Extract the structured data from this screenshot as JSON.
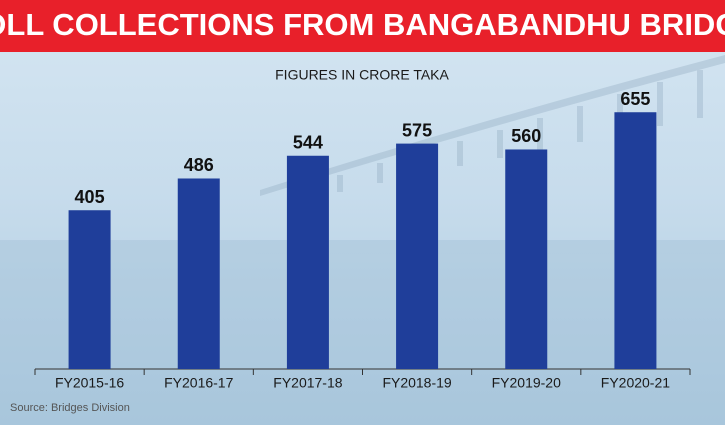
{
  "chart_data": {
    "type": "bar",
    "title": "TOLL COLLECTIONS FROM BANGABANDHU BRIDGE",
    "subtitle": "FIGURES IN CRORE TAKA",
    "source": "Source: Bridges Division",
    "categories": [
      "FY2015-16",
      "FY2016-17",
      "FY2017-18",
      "FY2018-19",
      "FY2019-20",
      "FY2020-21"
    ],
    "values": [
      405,
      486,
      544,
      575,
      560,
      655
    ],
    "color": "#1f3e9a"
  }
}
